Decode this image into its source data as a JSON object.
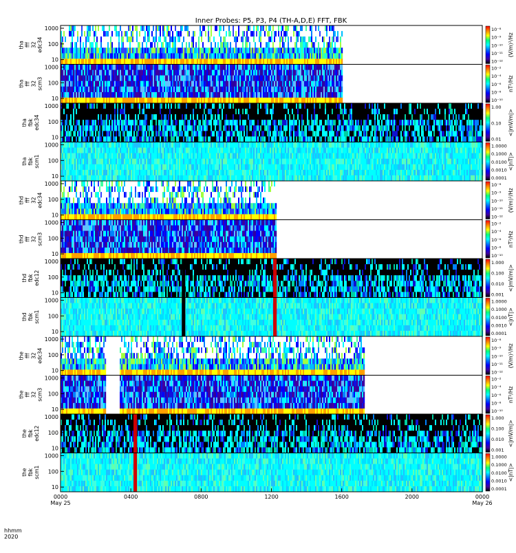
{
  "title": "Inner Probes: P5, P3, P4 (TH-A,D,E) FFT, FBK",
  "x_axis": {
    "label_lines": [
      "hhmm",
      "2020"
    ],
    "ticks": [
      {
        "hours": 0,
        "label": "0000",
        "sub": "May 25"
      },
      {
        "hours": 4,
        "label": "0400",
        "sub": ""
      },
      {
        "hours": 8,
        "label": "0800",
        "sub": ""
      },
      {
        "hours": 12,
        "label": "1200",
        "sub": ""
      },
      {
        "hours": 16,
        "label": "1600",
        "sub": ""
      },
      {
        "hours": 20,
        "label": "2000",
        "sub": ""
      },
      {
        "hours": 24,
        "label": "0000",
        "sub": "May 26"
      }
    ],
    "range_hours": [
      0,
      24
    ]
  },
  "y_axis": {
    "scale": "log",
    "tick_labels": [
      "10",
      "100",
      "1000"
    ]
  },
  "chart_data": [
    {
      "type": "heatmap",
      "panel": "tha-fff-32-edc34",
      "ylabel": [
        "tha",
        "fff",
        "32",
        "edc34"
      ],
      "ylim": [
        5,
        1500
      ],
      "color_unit": "(V/m)²/Hz",
      "color_ticks": [
        "10⁻⁸",
        "10⁻⁹",
        "10⁻¹⁰",
        "10⁻¹¹",
        "10⁻¹²"
      ],
      "data_end_hours": 16,
      "gaps": [],
      "spikes": [],
      "style": "edc_fff"
    },
    {
      "type": "heatmap",
      "panel": "tha-fff-32-scm3",
      "ylabel": [
        "tha",
        "fff",
        "32",
        "scm3"
      ],
      "ylim": [
        5,
        1500
      ],
      "color_unit": "nT²/Hz",
      "color_ticks": [
        "10⁻²",
        "10⁻⁴",
        "10⁻⁶",
        "10⁻⁸",
        "10⁻¹⁰"
      ],
      "data_end_hours": 16,
      "gaps": [],
      "spikes": [],
      "style": "scm_fff"
    },
    {
      "type": "heatmap",
      "panel": "tha-fbk-edc34",
      "ylabel": [
        "tha",
        "fbk",
        "edc34"
      ],
      "ylim": [
        5,
        1500
      ],
      "color_unit": "<|mV/m|>",
      "color_ticks": [
        "1.00",
        "0.10",
        "0.01"
      ],
      "data_end_hours": 24,
      "gaps": [],
      "spikes": [],
      "style": "edc_fbk"
    },
    {
      "type": "heatmap",
      "panel": "tha-fbk-scm1",
      "ylabel": [
        "tha",
        "fbk",
        "scm1"
      ],
      "ylim": [
        5,
        1500
      ],
      "color_unit": "<|nT|>",
      "color_ticks": [
        "1.0000",
        "0.1000",
        "0.0100",
        "0.0010",
        "0.0001"
      ],
      "data_end_hours": 24,
      "gaps": [],
      "spikes": [],
      "style": "scm_fbk"
    },
    {
      "type": "heatmap",
      "panel": "thd-fff-32-edc34",
      "ylabel": [
        "thd",
        "fff",
        "32",
        "edc34"
      ],
      "ylim": [
        5,
        1500
      ],
      "color_unit": "(V/m)²/Hz",
      "color_ticks": [
        "10⁻⁸",
        "10⁻⁹",
        "10⁻¹⁰",
        "10⁻¹¹",
        "10⁻¹²"
      ],
      "data_end_hours": 12.3,
      "gaps": [
        [
          12.3,
          23.8
        ]
      ],
      "spikes": [],
      "style": "edc_fff"
    },
    {
      "type": "heatmap",
      "panel": "thd-fff-32-scm3",
      "ylabel": [
        "thd",
        "fff",
        "32",
        "scm3"
      ],
      "ylim": [
        5,
        1500
      ],
      "color_unit": "nT²/Hz",
      "color_ticks": [
        "10⁻²",
        "10⁻⁴",
        "10⁻⁶",
        "10⁻⁸",
        "10⁻¹⁰"
      ],
      "data_end_hours": 12.3,
      "gaps": [
        [
          12.3,
          23.8
        ]
      ],
      "spikes": [],
      "style": "scm_fff"
    },
    {
      "type": "heatmap",
      "panel": "thd-fbk-edc12",
      "ylabel": [
        "thd",
        "fbk",
        "edc12"
      ],
      "ylim": [
        5,
        1500
      ],
      "color_unit": "<|mV/m|>",
      "color_ticks": [
        "1.000",
        "0.100",
        "0.010",
        "0.001"
      ],
      "data_end_hours": 24,
      "gaps": [],
      "spikes": [
        [
          6.9,
          7.1,
          "black"
        ],
        [
          12.1,
          12.3,
          "red"
        ]
      ],
      "style": "edc_fbk"
    },
    {
      "type": "heatmap",
      "panel": "thd-fbk-scm1",
      "ylabel": [
        "thd",
        "fbk",
        "scm1"
      ],
      "ylim": [
        5,
        1500
      ],
      "color_unit": "<|nT|>",
      "color_ticks": [
        "1.0000",
        "0.1000",
        "0.0100",
        "0.0010",
        "0.0001"
      ],
      "data_end_hours": 24,
      "gaps": [],
      "spikes": [
        [
          6.9,
          7.1,
          "black"
        ],
        [
          12.1,
          12.3,
          "red"
        ]
      ],
      "style": "scm_fbk"
    },
    {
      "type": "heatmap",
      "panel": "the-fff-32-edc34",
      "ylabel": [
        "the",
        "fff",
        "32",
        "edc34"
      ],
      "ylim": [
        5,
        1500
      ],
      "color_unit": "(V/m)²/Hz",
      "color_ticks": [
        "10⁻⁸",
        "10⁻⁹",
        "10⁻¹⁰",
        "10⁻¹¹",
        "10⁻¹²"
      ],
      "data_end_hours": 17.3,
      "gaps": [
        [
          2.6,
          3.4
        ],
        [
          17.3,
          23.9
        ]
      ],
      "spikes": [],
      "style": "edc_fff"
    },
    {
      "type": "heatmap",
      "panel": "the-fff-32-scm3",
      "ylabel": [
        "the",
        "fff",
        "32",
        "scm3"
      ],
      "ylim": [
        5,
        1500
      ],
      "color_unit": "nT²/Hz",
      "color_ticks": [
        "10⁻²",
        "10⁻⁴",
        "10⁻⁶",
        "10⁻⁸",
        "10⁻¹⁰"
      ],
      "data_end_hours": 17.3,
      "gaps": [
        [
          2.6,
          3.4
        ],
        [
          17.3,
          23.9
        ]
      ],
      "spikes": [],
      "style": "scm_fff"
    },
    {
      "type": "heatmap",
      "panel": "the-fbk-edc12",
      "ylabel": [
        "the",
        "fbk",
        "edc12"
      ],
      "ylim": [
        5,
        1500
      ],
      "color_unit": "<|mV/m|>",
      "color_ticks": [
        "1.000",
        "0.100",
        "0.010",
        "0.001"
      ],
      "data_end_hours": 24,
      "gaps": [],
      "spikes": [
        [
          4.15,
          4.35,
          "red"
        ]
      ],
      "style": "edc_fbk"
    },
    {
      "type": "heatmap",
      "panel": "the-fbk-scm1",
      "ylabel": [
        "the",
        "fbk",
        "scm1"
      ],
      "ylim": [
        5,
        1500
      ],
      "color_unit": "<|nT|>",
      "color_ticks": [
        "1.0000",
        "0.1000",
        "0.0100",
        "0.0010",
        "0.0001"
      ],
      "data_end_hours": 24,
      "gaps": [],
      "spikes": [
        [
          4.15,
          4.35,
          "red"
        ]
      ],
      "style": "scm_fbk"
    }
  ],
  "colors": {
    "colorbar": [
      "#ff0000",
      "#ff8000",
      "#ffff00",
      "#00ff80",
      "#00ffff",
      "#0080ff",
      "#0000ff",
      "#4000a0",
      "#000000"
    ]
  }
}
